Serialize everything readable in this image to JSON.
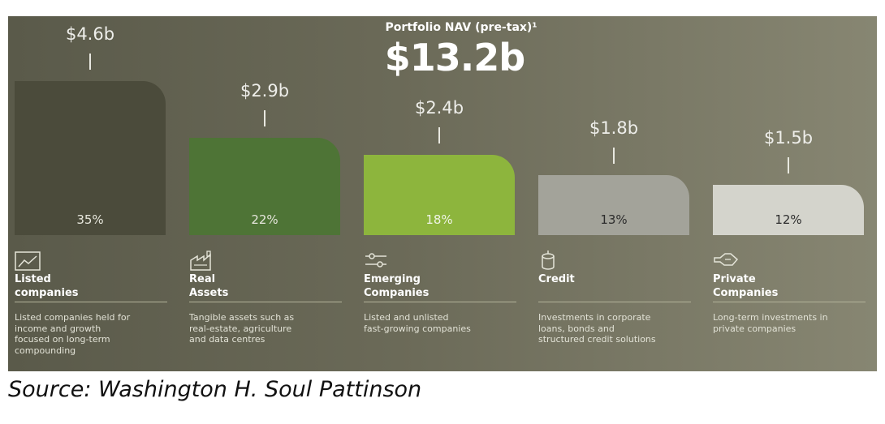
{
  "chart_data": {
    "type": "bar",
    "title": "Portfolio NAV (pre-tax)¹",
    "total": "$13.2b",
    "categories": [
      "Listed companies",
      "Real Assets",
      "Emerging Companies",
      "Credit",
      "Private Companies"
    ],
    "values": [
      4.6,
      2.9,
      2.4,
      1.8,
      1.5
    ],
    "value_labels": [
      "$4.6b",
      "$2.9b",
      "$2.4b",
      "$1.8b",
      "$1.5b"
    ],
    "percent_labels": [
      "35%",
      "22%",
      "18%",
      "13%",
      "12%"
    ],
    "bar_colors": [
      "#4b4b3b",
      "#4e7436",
      "#8db53d",
      "#a3a39a",
      "#d4d4cc"
    ],
    "percent_label_colors": [
      "#e6e6dc",
      "#e6e6dc",
      "#f0f4e6",
      "#2c2c2c",
      "#2c2c2c"
    ],
    "unit": "$b",
    "ylim": [
      0,
      4.6
    ]
  },
  "categories": [
    {
      "icon": "line-chart-icon",
      "title": "Listed\ncompanies",
      "desc": "Listed companies held for\nincome and growth\nfocused on long-term\ncompounding"
    },
    {
      "icon": "factory-icon",
      "title": "Real\nAssets",
      "desc": "Tangible assets such as\nreal-estate, agriculture\nand data centres"
    },
    {
      "icon": "sliders-icon",
      "title": "Emerging\nCompanies",
      "desc": "Listed and unlisted\nfast-growing companies"
    },
    {
      "icon": "coins-icon",
      "title": "Credit",
      "desc": "Investments in corporate\nloans, bonds and\nstructured credit solutions"
    },
    {
      "icon": "handshake-icon",
      "title": "Private\nCompanies",
      "desc": "Long-term investments in\nprivate companies"
    }
  ],
  "source": "Source: Washington H. Soul Pattinson"
}
